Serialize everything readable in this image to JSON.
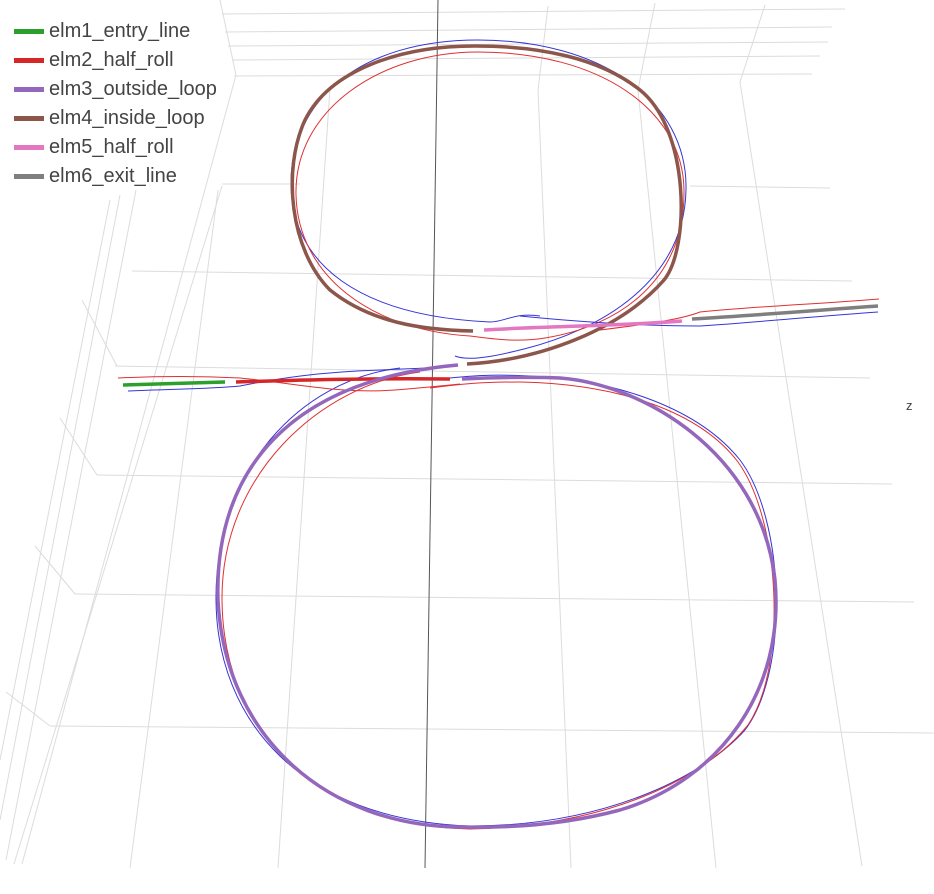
{
  "chart_data": {
    "type": "line",
    "title": "",
    "grid": true,
    "axis_labels": {
      "z": "z"
    },
    "legend_position": "top-left",
    "series": [
      {
        "name": "elm1_entry_line",
        "color": "#2ca02c"
      },
      {
        "name": "elm2_half_roll",
        "color": "#d62728"
      },
      {
        "name": "elm3_outside_loop",
        "color": "#9467bd"
      },
      {
        "name": "elm4_inside_loop",
        "color": "#8c564b"
      },
      {
        "name": "elm5_half_roll",
        "color": "#e377c2"
      },
      {
        "name": "elm6_exit_line",
        "color": "#7f7f7f"
      }
    ],
    "envelope_colors": {
      "upper": "#e03030",
      "lower": "#3535d8"
    },
    "axis_line_color": "#555555",
    "grid_color": "#dcdcdc"
  }
}
